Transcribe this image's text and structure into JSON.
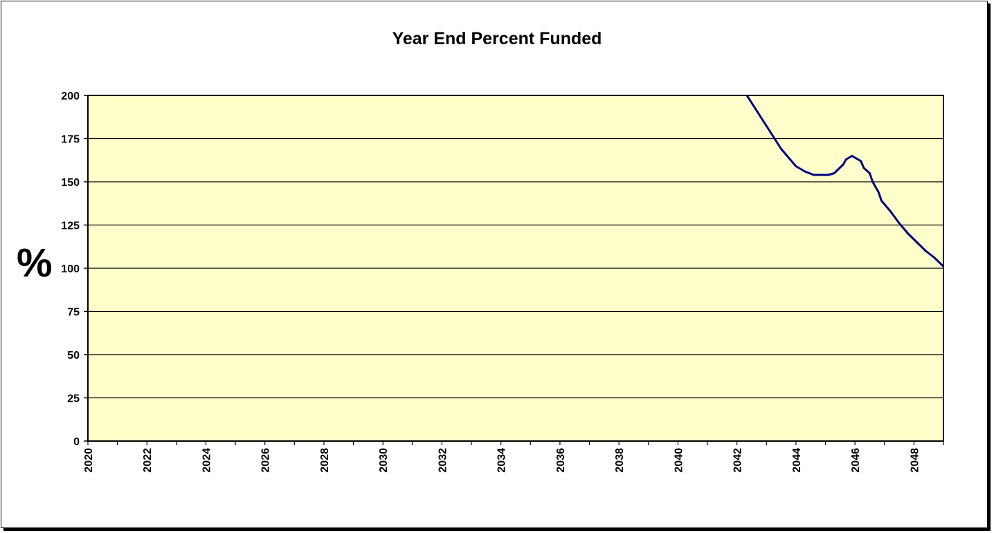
{
  "chart_data": {
    "type": "line",
    "title": "Year End Percent Funded",
    "ylabel": "%",
    "xlabel": "",
    "ylim": [
      0,
      200
    ],
    "xlim": [
      2020,
      2049
    ],
    "y_ticks": [
      "0",
      "25",
      "50",
      "75",
      "100",
      "125",
      "150",
      "175",
      "200"
    ],
    "x_ticks": [
      "2020",
      "2022",
      "2024",
      "2026",
      "2028",
      "2030",
      "2032",
      "2034",
      "2036",
      "2038",
      "2040",
      "2042",
      "2044",
      "2046",
      "2048"
    ],
    "grid": "horizontal",
    "plot_background": "#ffffcc",
    "series": [
      {
        "color": "#000080",
        "x": [
          2042.3,
          2042.6,
          2042.9,
          2043.2,
          2043.5,
          2043.8,
          2044.0,
          2044.3,
          2044.6,
          2044.9,
          2045.1,
          2045.3,
          2045.6,
          2045.7,
          2045.9,
          2046.0,
          2046.2,
          2046.3,
          2046.5,
          2046.6,
          2046.8,
          2046.9,
          2047.2,
          2047.5,
          2047.8,
          2048.1,
          2048.4,
          2048.7,
          2049.0
        ],
        "y": [
          201,
          193,
          185,
          177,
          169,
          163,
          159,
          156,
          154,
          154,
          154,
          155,
          160,
          163,
          165,
          164,
          162,
          158,
          155,
          150,
          144,
          139,
          133,
          126,
          120,
          115,
          110,
          106,
          101
        ]
      }
    ]
  }
}
